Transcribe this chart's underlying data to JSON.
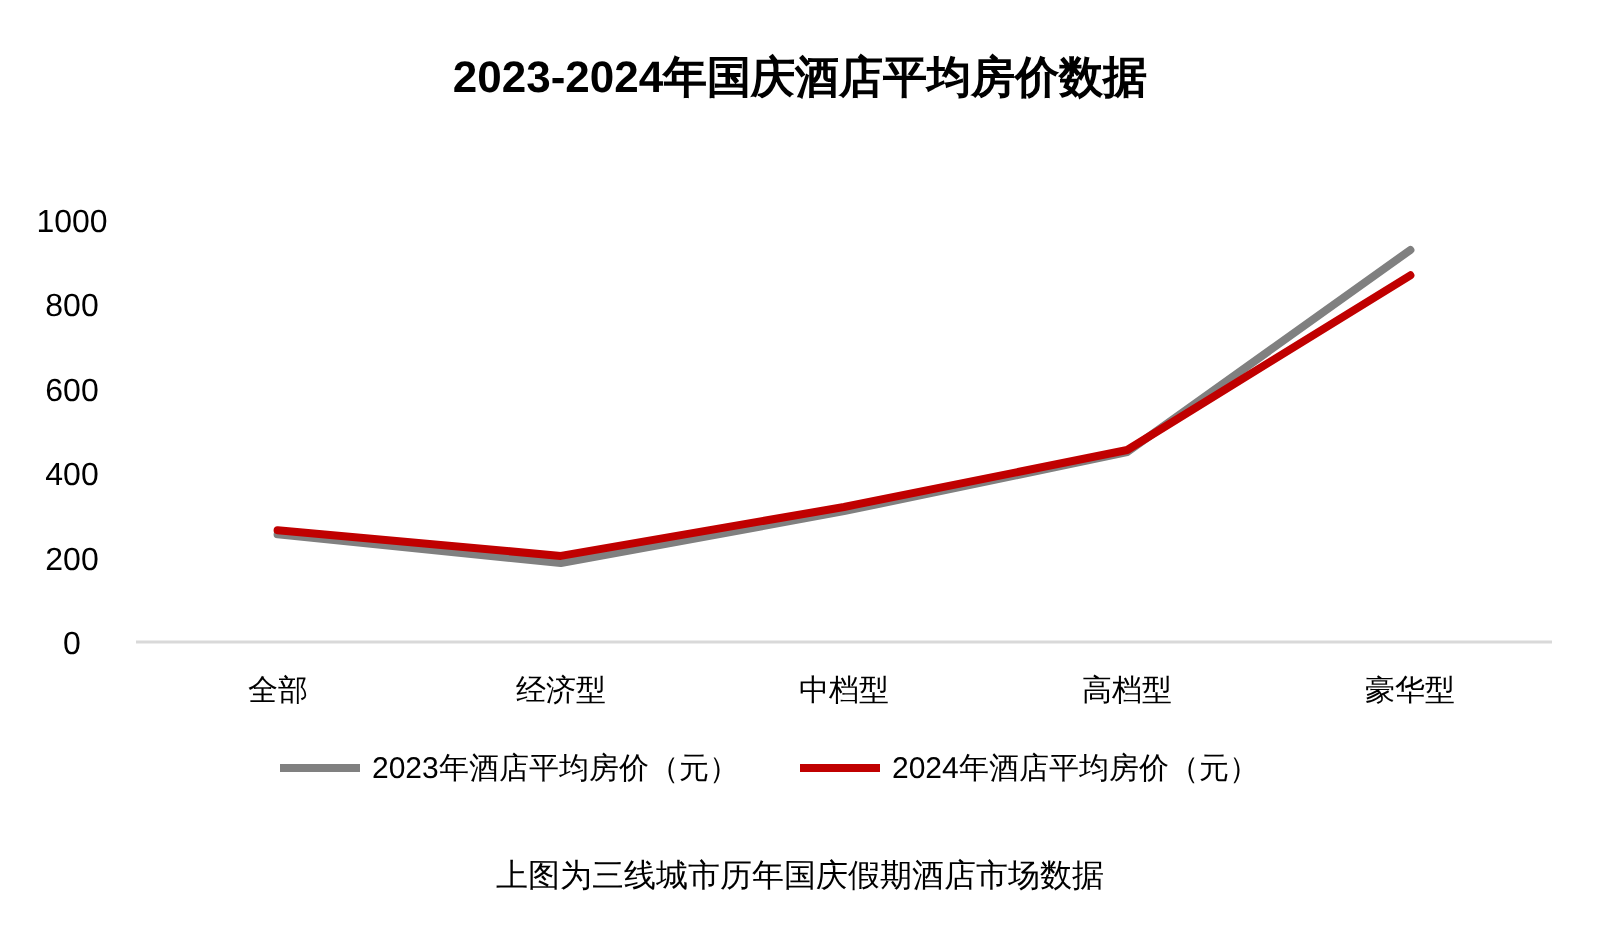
{
  "chart_data": {
    "type": "line",
    "title": "2023-2024年国庆酒店平均房价数据",
    "categories": [
      "全部",
      "经济型",
      "中档型",
      "高档型",
      "豪华型"
    ],
    "series": [
      {
        "name": "2023年酒店平均房价（元）",
        "color": "#808080",
        "values": [
          255,
          187,
          310,
          450,
          929
        ]
      },
      {
        "name": "2024年酒店平均房价（元）",
        "color": "#c00000",
        "values": [
          265,
          204,
          320,
          455,
          869
        ]
      }
    ],
    "ylim": [
      0,
      1000
    ],
    "yticks": [
      0,
      200,
      400,
      600,
      800,
      1000
    ],
    "grid": false,
    "legend": "bottom",
    "marker": "none",
    "line_style": "solid",
    "annotations": [
      "上图为三线城市历年国庆假期酒店市场数据"
    ]
  }
}
